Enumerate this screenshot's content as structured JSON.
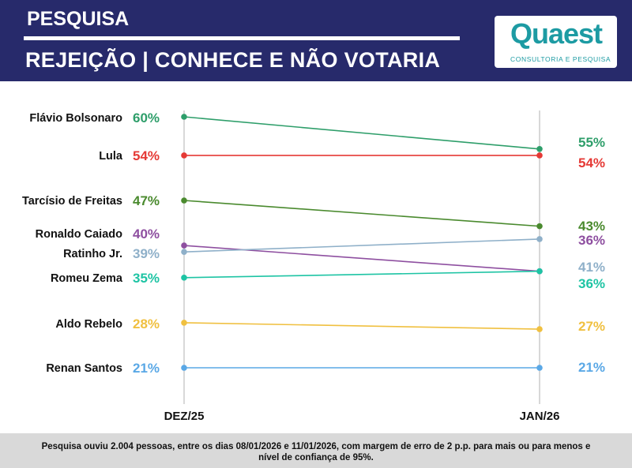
{
  "header": {
    "kicker": "PESQUISA",
    "title": "REJEIÇÃO | CONHECE E NÃO VOTARIA"
  },
  "logo": {
    "word": "Quaest",
    "tagline": "CONSULTORIA E PESQUISA"
  },
  "chart_data": {
    "type": "line",
    "title": "REJEIÇÃO | CONHECE E NÃO VOTARIA",
    "categories": [
      "DEZ/25",
      "JAN/26"
    ],
    "unit": "%",
    "series": [
      {
        "name": "Flávio Bolsonaro",
        "values": [
          60,
          55
        ],
        "color": "#2e9e6a"
      },
      {
        "name": "Lula",
        "values": [
          54,
          54
        ],
        "color": "#e53935"
      },
      {
        "name": "Tarcísio de Freitas",
        "values": [
          47,
          43
        ],
        "color": "#4a8a2e"
      },
      {
        "name": "Ronaldo Caiado",
        "values": [
          40,
          36
        ],
        "color": "#8e4fa0"
      },
      {
        "name": "Ratinho Jr.",
        "values": [
          39,
          41
        ],
        "color": "#8fb0c9"
      },
      {
        "name": "Romeu Zema",
        "values": [
          35,
          36
        ],
        "color": "#1ec4a4"
      },
      {
        "name": "Aldo Rebelo",
        "values": [
          28,
          27
        ],
        "color": "#f0c040"
      },
      {
        "name": "Renan Santos",
        "values": [
          21,
          21
        ],
        "color": "#5aa8e6"
      }
    ]
  },
  "footer": {
    "note": "Pesquisa ouviu 2.004 pessoas, entre os dias 08/01/2026 e 11/01/2026, com margem de erro de 2 p.p. para mais ou para menos e nível de confiança de 95%."
  }
}
